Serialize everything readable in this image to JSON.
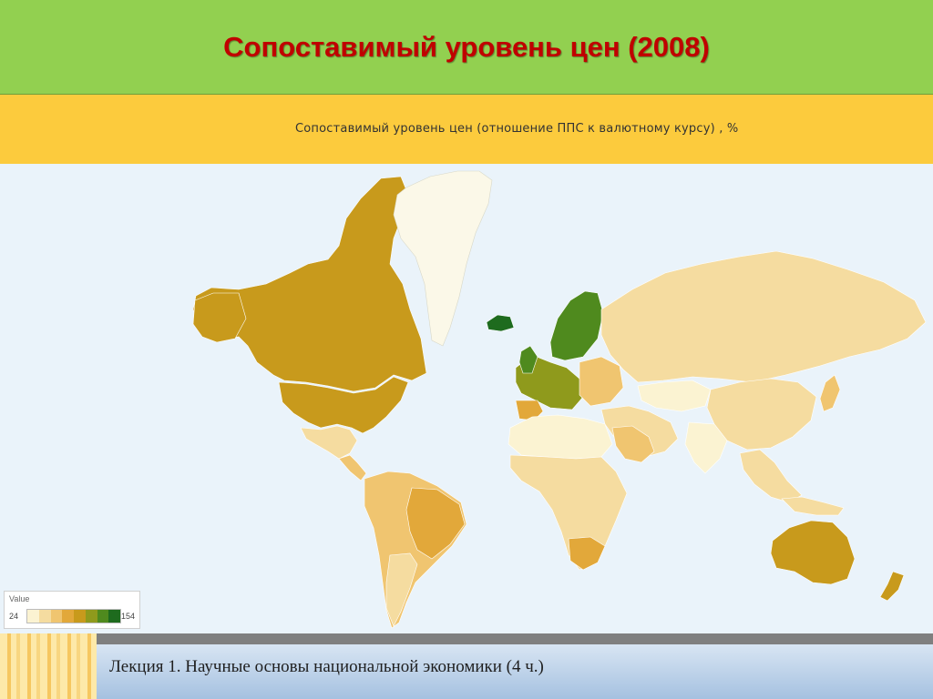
{
  "header": {
    "title": "Сопоставимый уровень цен (2008)"
  },
  "map": {
    "subtitle": "Сопоставимый уровень цен (отношение ППС к валютному курсу) , %",
    "ocean_color": "#eaf3fa",
    "scale_colors": [
      "#fbf3d2",
      "#f5dca0",
      "#f0c570",
      "#e2a83a",
      "#c89a1c",
      "#8f9a1c",
      "#4f8a1e",
      "#1e6b1e"
    ],
    "legend": {
      "title": "Value",
      "min": "24",
      "max": "154"
    }
  },
  "footer": {
    "text": "Лекция 1. Научные основы национальной экономики (4 ч.)"
  }
}
